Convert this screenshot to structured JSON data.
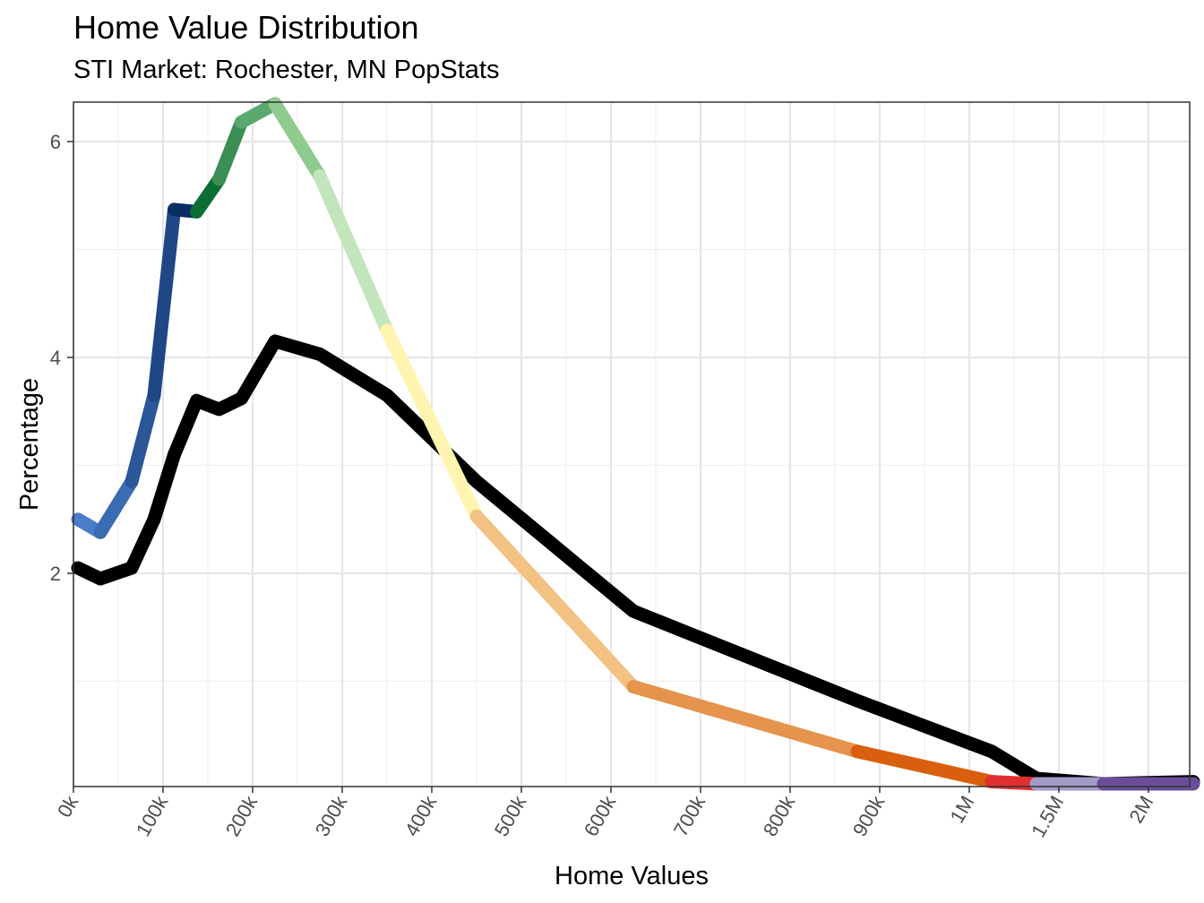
{
  "chart_data": {
    "type": "line",
    "title": "Home Value Distribution",
    "subtitle": "STI Market: Rochester, MN PopStats",
    "xlabel": "Home Values",
    "ylabel": "Percentage",
    "x_tick_labels": [
      "0k",
      "100k",
      "200k",
      "300k",
      "400k",
      "500k",
      "600k",
      "700k",
      "800k",
      "900k",
      "1M",
      "1.5M",
      "2M"
    ],
    "y_ticks": [
      2,
      4,
      6
    ],
    "ylim": [
      0.05,
      6.35
    ],
    "grid": true,
    "legend": "none",
    "x_scale": "piecewise: 0–1M linear per 100k; then 1M, 1.5M, 2M at equal spacing",
    "series": [
      {
        "color": "#000000",
        "x": [
          5000,
          30000,
          65000,
          90000,
          112500,
          137500,
          162500,
          187500,
          225000,
          275000,
          350000,
          450000,
          625000,
          875000,
          1125000,
          1375000,
          1750000,
          2250000
        ],
        "y": [
          2.05,
          1.95,
          2.05,
          2.5,
          3.1,
          3.6,
          3.52,
          3.62,
          4.15,
          4.03,
          3.65,
          2.85,
          1.65,
          0.82,
          0.35,
          0.1,
          0.05,
          0.07
        ]
      },
      {
        "segment_colors": [
          "#4b7ec9",
          "#3a6cb3",
          "#2b5799",
          "#1f4786",
          "#0a2d63",
          "#0b6e34",
          "#3b8f55",
          "#5aa86e",
          "#8fca8e",
          "#c3e5bc",
          "#fff5b0",
          "#f3c282",
          "#e6934d",
          "#d95f0e",
          "#e03030",
          "#a29bc8",
          "#6b4c9a"
        ],
        "x": [
          5000,
          30000,
          65000,
          90000,
          112500,
          137500,
          162500,
          187500,
          225000,
          275000,
          350000,
          450000,
          625000,
          875000,
          1125000,
          1375000,
          1750000,
          2250000
        ],
        "y": [
          2.5,
          2.38,
          2.85,
          3.65,
          5.37,
          5.35,
          5.65,
          6.18,
          6.35,
          5.68,
          4.25,
          2.53,
          0.95,
          0.35,
          0.07,
          0.05,
          0.05,
          0.05
        ]
      }
    ]
  }
}
